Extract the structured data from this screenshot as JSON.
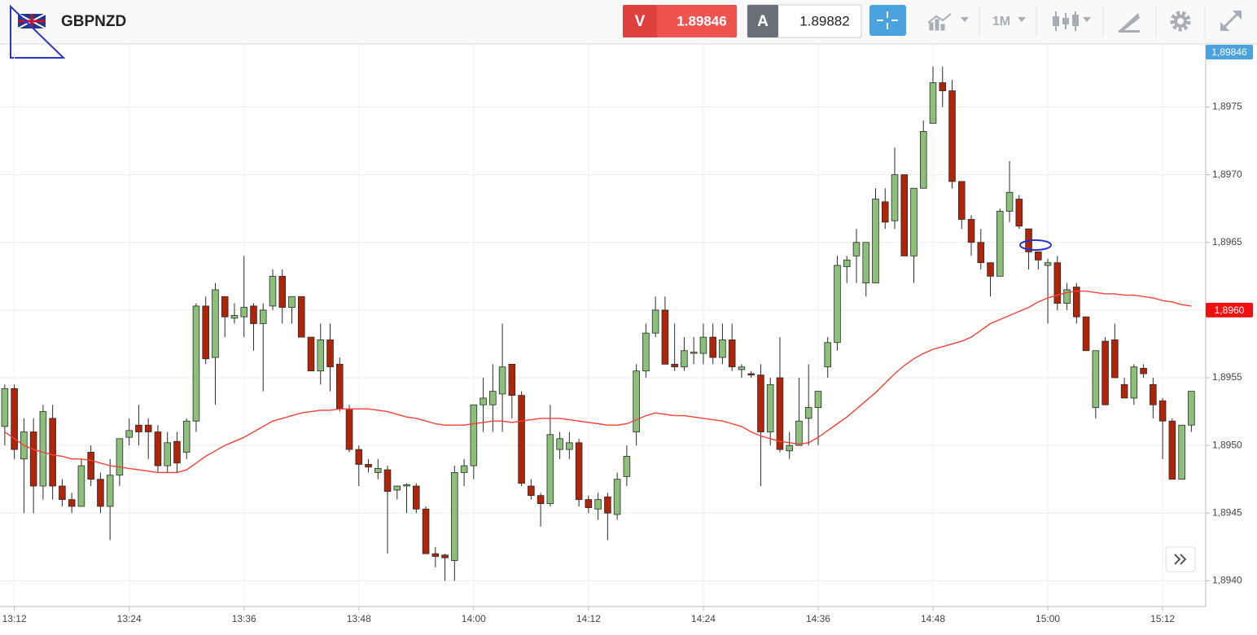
{
  "header": {
    "symbol": "GBPNZD",
    "bid_label": "V",
    "bid_price": "1.89846",
    "ask_label": "A",
    "ask_price": "1.89882",
    "timeframe": "1M"
  },
  "chart_data": {
    "type": "candlestick",
    "title": "GBPNZD",
    "up_color": "#8cc07a",
    "down_color": "#b0250a",
    "grid": true,
    "x": [
      791,
      792,
      793,
      794,
      795,
      796,
      797,
      798,
      799,
      800,
      801,
      802,
      803,
      804,
      805,
      806,
      807,
      808,
      809,
      810,
      811,
      812,
      813,
      814,
      815,
      816,
      817,
      818,
      819,
      820,
      821,
      822,
      823,
      824,
      825,
      826,
      827,
      828,
      829,
      830,
      831,
      832,
      833,
      834,
      835,
      836,
      837,
      838,
      839,
      840,
      841,
      842,
      843,
      844,
      845,
      846,
      847,
      848,
      849,
      850,
      851,
      852,
      853,
      854,
      855,
      856,
      857,
      858,
      859,
      860,
      861,
      862,
      863,
      864,
      865,
      866,
      867,
      868,
      869,
      870,
      871,
      872,
      873,
      874,
      875,
      876,
      877,
      878,
      879,
      880,
      881,
      882,
      883,
      884,
      885,
      886,
      887,
      888,
      889,
      890,
      891,
      892,
      893,
      894,
      895,
      896,
      897,
      898,
      899,
      900,
      901,
      902,
      903,
      904,
      905,
      906,
      907,
      908,
      909,
      910,
      911,
      912,
      913,
      914,
      915
    ],
    "open": [
      1.89514,
      1.89542,
      1.8949,
      1.8951,
      1.8947,
      1.8952,
      1.8947,
      1.8946,
      1.89455,
      1.89495,
      1.89475,
      1.89455,
      1.89478,
      1.89506,
      1.89515,
      1.89515,
      1.8951,
      1.89485,
      1.89503,
      1.89495,
      1.89518,
      1.89603,
      1.89565,
      1.8961,
      1.89594,
      1.89595,
      1.89603,
      1.8959,
      1.89603,
      1.89625,
      1.89602,
      1.8961,
      1.8958,
      1.89555,
      1.89578,
      1.8956,
      1.89527,
      1.89497,
      1.89486,
      1.8948,
      1.89482,
      1.89467,
      1.8947,
      1.8947,
      1.89453,
      1.8942,
      1.89419,
      1.89415,
      1.8948,
      1.89485,
      1.8953,
      1.8953,
      1.89538,
      1.8956,
      1.89537,
      1.8947,
      1.89463,
      1.89457,
      1.89497,
      1.89497,
      1.89502,
      1.8946,
      1.89453,
      1.89462,
      1.89449,
      1.89477,
      1.8951,
      1.89555,
      1.89583,
      1.896,
      1.8956,
      1.89558,
      1.89568,
      1.89568,
      1.8958,
      1.89565,
      1.89578,
      1.89556,
      1.89553,
      1.89552,
      1.8951,
      1.8955,
      1.89496,
      1.895,
      1.8952,
      1.89528,
      1.89558,
      1.89576,
      1.89632,
      1.8964,
      1.8962,
      1.8962,
      1.8968,
      1.89666,
      1.897,
      1.8964,
      1.8969,
      1.89738,
      1.89768,
      1.89762,
      1.89695,
      1.89667,
      1.8965,
      1.89635,
      1.89625,
      1.89673,
      1.89682,
      1.8966,
      1.89643,
      1.89633,
      1.89635,
      1.89605,
      1.89617,
      1.89595,
      1.89528,
      1.89577,
      1.89578,
      1.89545,
      1.89535,
      1.89557,
      1.89545,
      1.89533,
      1.89518,
      1.89475,
      1.89515
    ],
    "high": [
      1.89545,
      1.89545,
      1.8952,
      1.8952,
      1.8953,
      1.8953,
      1.89475,
      1.89465,
      1.8949,
      1.895,
      1.8948,
      1.8949,
      1.89505,
      1.8952,
      1.8953,
      1.8952,
      1.89515,
      1.8951,
      1.8951,
      1.8952,
      1.89605,
      1.8961,
      1.8962,
      1.8961,
      1.89605,
      1.8964,
      1.89605,
      1.89605,
      1.8963,
      1.8963,
      1.8961,
      1.8961,
      1.8958,
      1.8959,
      1.8959,
      1.89565,
      1.8953,
      1.895,
      1.8949,
      1.8949,
      1.89485,
      1.8947,
      1.89472,
      1.89472,
      1.89455,
      1.89425,
      1.8942,
      1.89485,
      1.8949,
      1.8953,
      1.8955,
      1.8956,
      1.8959,
      1.8956,
      1.8954,
      1.89475,
      1.89465,
      1.8953,
      1.8951,
      1.8951,
      1.89505,
      1.89463,
      1.89465,
      1.89465,
      1.8948,
      1.895,
      1.8956,
      1.8959,
      1.8961,
      1.8961,
      1.8959,
      1.8958,
      1.8958,
      1.8959,
      1.8959,
      1.8959,
      1.8959,
      1.8956,
      1.89555,
      1.8956,
      1.8955,
      1.8958,
      1.8951,
      1.8955,
      1.8956,
      1.8954,
      1.8958,
      1.8964,
      1.8964,
      1.8966,
      1.8965,
      1.8969,
      1.8969,
      1.8972,
      1.897,
      1.8969,
      1.8974,
      1.8978,
      1.8978,
      1.8977,
      1.89695,
      1.8967,
      1.8966,
      1.89635,
      1.89675,
      1.8971,
      1.89685,
      1.8966,
      1.89643,
      1.89638,
      1.8964,
      1.8962,
      1.8962,
      1.89595,
      1.8957,
      1.8958,
      1.8959,
      1.8955,
      1.8956,
      1.8956,
      1.8955,
      1.89535,
      1.8952,
      1.89515,
      1.8954
    ],
    "low": [
      1.895,
      1.8949,
      1.8945,
      1.8945,
      1.8946,
      1.8946,
      1.89455,
      1.8945,
      1.89455,
      1.8947,
      1.8945,
      1.8943,
      1.8947,
      1.895,
      1.895,
      1.8949,
      1.8948,
      1.8948,
      1.8948,
      1.8949,
      1.8951,
      1.8956,
      1.8953,
      1.8958,
      1.8959,
      1.8958,
      1.8957,
      1.8954,
      1.896,
      1.8959,
      1.8959,
      1.8958,
      1.89555,
      1.89545,
      1.8954,
      1.89525,
      1.89495,
      1.8947,
      1.8948,
      1.89475,
      1.8942,
      1.8946,
      1.8945,
      1.8945,
      1.8942,
      1.8941,
      1.894,
      1.894,
      1.8947,
      1.89475,
      1.8951,
      1.8951,
      1.8951,
      1.8952,
      1.8947,
      1.8946,
      1.8944,
      1.89455,
      1.8949,
      1.8949,
      1.89455,
      1.8945,
      1.89445,
      1.8943,
      1.89445,
      1.8947,
      1.895,
      1.8955,
      1.8958,
      1.8956,
      1.89555,
      1.89555,
      1.8956,
      1.8956,
      1.8956,
      1.8956,
      1.89555,
      1.8955,
      1.8955,
      1.8947,
      1.895,
      1.89495,
      1.8949,
      1.895,
      1.895,
      1.895,
      1.8955,
      1.8957,
      1.8962,
      1.8962,
      1.8961,
      1.8962,
      1.8966,
      1.8966,
      1.8964,
      1.8962,
      1.8969,
      1.89738,
      1.8975,
      1.8969,
      1.8966,
      1.8964,
      1.8963,
      1.8961,
      1.89625,
      1.89665,
      1.8966,
      1.8963,
      1.8963,
      1.8959,
      1.896,
      1.896,
      1.8959,
      1.8957,
      1.8952,
      1.8953,
      1.8955,
      1.89535,
      1.8953,
      1.8955,
      1.8952,
      1.8949,
      1.89475,
      1.89475,
      1.8951
    ],
    "close": [
      1.89542,
      1.89497,
      1.8951,
      1.8947,
      1.89525,
      1.8947,
      1.8946,
      1.89455,
      1.89485,
      1.89475,
      1.89455,
      1.89478,
      1.89505,
      1.89511,
      1.8951,
      1.8951,
      1.89485,
      1.89502,
      1.89487,
      1.89518,
      1.89603,
      1.89564,
      1.89615,
      1.89595,
      1.89596,
      1.89602,
      1.8959,
      1.896,
      1.89625,
      1.89602,
      1.8961,
      1.8958,
      1.89555,
      1.89578,
      1.89558,
      1.89527,
      1.89497,
      1.89486,
      1.89484,
      1.89483,
      1.89466,
      1.8947,
      1.89471,
      1.89453,
      1.8942,
      1.89418,
      1.89417,
      1.8948,
      1.89485,
      1.8953,
      1.89535,
      1.8954,
      1.89558,
      1.89537,
      1.89472,
      1.89463,
      1.89457,
      1.89508,
      1.89505,
      1.89502,
      1.8946,
      1.89454,
      1.8946,
      1.8945,
      1.89475,
      1.89492,
      1.89555,
      1.89583,
      1.896,
      1.8956,
      1.89558,
      1.8957,
      1.89569,
      1.8958,
      1.89565,
      1.89578,
      1.89558,
      1.89558,
      1.89552,
      1.8951,
      1.89545,
      1.89497,
      1.895,
      1.89518,
      1.89528,
      1.8954,
      1.89576,
      1.89633,
      1.89637,
      1.8965,
      1.8965,
      1.89682,
      1.89665,
      1.897,
      1.8964,
      1.8969,
      1.89732,
      1.89768,
      1.89762,
      1.89695,
      1.89667,
      1.8965,
      1.89635,
      1.89625,
      1.89673,
      1.89687,
      1.89662,
      1.89643,
      1.89637,
      1.89635,
      1.89605,
      1.89615,
      1.89595,
      1.8957,
      1.8957,
      1.8953,
      1.8955,
      1.89535,
      1.89558,
      1.89553,
      1.8953,
      1.89518,
      1.89475,
      1.89515,
      1.8954
    ],
    "line": {
      "color": "#f0413a",
      "values": [
        1.8951,
        1.89505,
        1.895,
        1.89497,
        1.89495,
        1.89493,
        1.89492,
        1.8949,
        1.8949,
        1.89489,
        1.89487,
        1.89485,
        1.89484,
        1.89483,
        1.89482,
        1.89481,
        1.8948,
        1.8948,
        1.8948,
        1.89482,
        1.89487,
        1.89492,
        1.89496,
        1.895,
        1.89503,
        1.89506,
        1.8951,
        1.89514,
        1.89518,
        1.8952,
        1.89522,
        1.89524,
        1.89525,
        1.89526,
        1.89526,
        1.89527,
        1.89527,
        1.89527,
        1.89527,
        1.89526,
        1.89525,
        1.89523,
        1.89521,
        1.8952,
        1.89518,
        1.89516,
        1.89515,
        1.89515,
        1.89515,
        1.89516,
        1.89517,
        1.89518,
        1.89518,
        1.89517,
        1.89518,
        1.89519,
        1.8952,
        1.8952,
        1.8952,
        1.89519,
        1.89518,
        1.89517,
        1.89516,
        1.89515,
        1.89515,
        1.89516,
        1.89519,
        1.89522,
        1.89524,
        1.89523,
        1.89522,
        1.89522,
        1.89521,
        1.8952,
        1.89519,
        1.89518,
        1.89516,
        1.89514,
        1.8951,
        1.89507,
        1.89505,
        1.89503,
        1.89502,
        1.89501,
        1.89502,
        1.89506,
        1.89511,
        1.89516,
        1.89521,
        1.89527,
        1.89533,
        1.89539,
        1.89546,
        1.89553,
        1.89559,
        1.89564,
        1.89568,
        1.89571,
        1.89573,
        1.89575,
        1.89577,
        1.8958,
        1.89585,
        1.8959,
        1.89593,
        1.89596,
        1.89599,
        1.89602,
        1.89606,
        1.89609,
        1.89611,
        1.89613,
        1.89614,
        1.89614,
        1.89613,
        1.89612,
        1.89612,
        1.89611,
        1.89611,
        1.8961,
        1.89609,
        1.89607,
        1.89606,
        1.89604,
        1.89603
      ]
    },
    "xlim": [
      790.5,
      916.5
    ],
    "xticks": [
      {
        "value": 792,
        "label": "13:12"
      },
      {
        "value": 804,
        "label": "13:24"
      },
      {
        "value": 816,
        "label": "13:36"
      },
      {
        "value": 828,
        "label": "13:48"
      },
      {
        "value": 840,
        "label": "14:00"
      },
      {
        "value": 852,
        "label": "14:12"
      },
      {
        "value": 864,
        "label": "14:24"
      },
      {
        "value": 876,
        "label": "14:36"
      },
      {
        "value": 888,
        "label": "14:48"
      },
      {
        "value": 900,
        "label": "15:00"
      },
      {
        "value": 912,
        "label": "15:12"
      }
    ],
    "ylim": [
      1.89381,
      1.89796
    ],
    "yticks": [
      {
        "value": 1.894,
        "label": "1,8940"
      },
      {
        "value": 1.8945,
        "label": "1,8945"
      },
      {
        "value": 1.895,
        "label": "1,8950"
      },
      {
        "value": 1.8955,
        "label": "1,8955"
      },
      {
        "value": 1.896,
        "label": "1,8960"
      },
      {
        "value": 1.8965,
        "label": "1,8965"
      },
      {
        "value": 1.897,
        "label": "1,8970"
      },
      {
        "value": 1.8975,
        "label": "1,8975"
      }
    ],
    "price_tag": {
      "value": 1.89846,
      "label": "1,89846",
      "color": "#4aa3df"
    },
    "line_tag": {
      "value": 1.896,
      "label": "1,8960",
      "color": "#f01010"
    }
  }
}
